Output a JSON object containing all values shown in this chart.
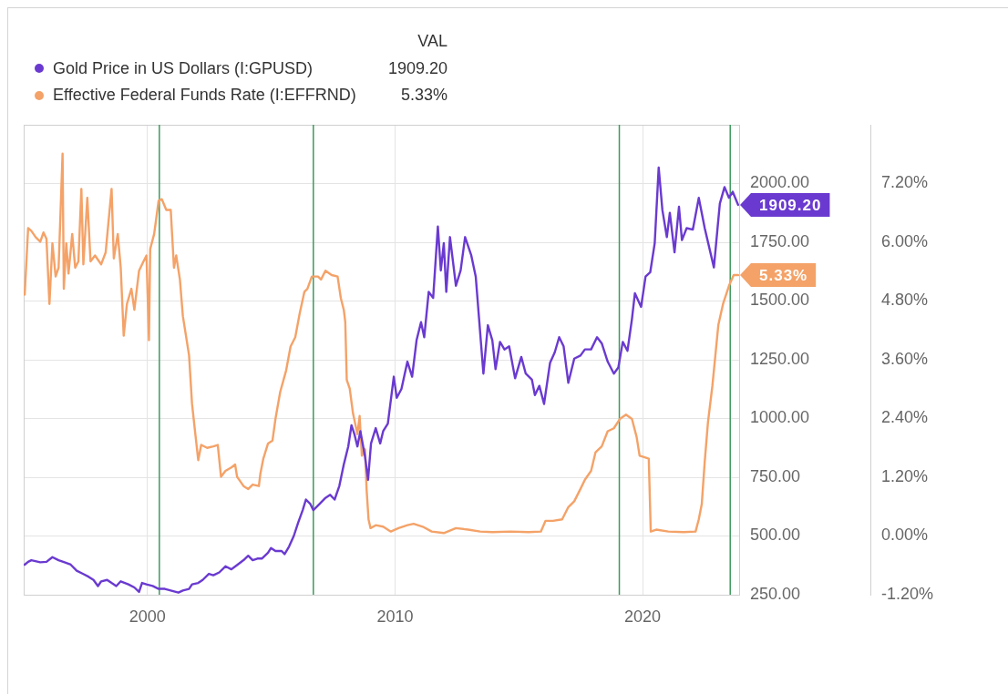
{
  "chart_data": {
    "type": "line",
    "xlim": [
      1995,
      2023.9
    ],
    "xticks": [
      2000,
      2010,
      2020
    ],
    "ylim": [
      250,
      2250
    ],
    "yticks": [
      {
        "value": 250,
        "label": "250.00"
      },
      {
        "value": 500,
        "label": "500.00"
      },
      {
        "value": 750,
        "label": "750.00"
      },
      {
        "value": 1000,
        "label": "1000.00"
      },
      {
        "value": 1250,
        "label": "1250.00"
      },
      {
        "value": 1500,
        "label": "1500.00"
      },
      {
        "value": 1750,
        "label": "1750.00"
      },
      {
        "value": 2000,
        "label": "2000.00"
      }
    ],
    "y2lim": [
      -1.2,
      8.4
    ],
    "y2ticks": [
      {
        "value": -1.2,
        "label": "-1.20%"
      },
      {
        "value": 0,
        "label": "0.00%"
      },
      {
        "value": 1.2,
        "label": "1.20%"
      },
      {
        "value": 2.4,
        "label": "2.40%"
      },
      {
        "value": 3.6,
        "label": "3.60%"
      },
      {
        "value": 4.8,
        "label": "4.80%"
      },
      {
        "value": 6,
        "label": "6.00%"
      },
      {
        "value": 7.2,
        "label": "7.20%"
      }
    ],
    "grid": true,
    "legend": "top left",
    "legend_title": "VAL",
    "ref_lines": [
      {
        "axis": "x",
        "value": 2000.48,
        "color": "#3d9a5c"
      },
      {
        "axis": "x",
        "value": 2006.7,
        "color": "#3d9a5c"
      },
      {
        "axis": "x",
        "value": 2019.06,
        "color": "#3d9a5c"
      },
      {
        "axis": "x",
        "value": 2023.54,
        "color": "#3d9a5c"
      }
    ],
    "series": [
      {
        "name": "Gold Price in US Dollars (I:GPUSD)",
        "color": "#6a3ad0",
        "x": [
          1995.04,
          1995.18,
          1995.31,
          1995.67,
          1995.92,
          1996.16,
          1996.41,
          1996.65,
          1996.9,
          1997.14,
          1997.39,
          1997.63,
          1997.82,
          1998.0,
          1998.13,
          1998.37,
          1998.55,
          1998.74,
          1998.92,
          1999.23,
          1999.47,
          1999.66,
          1999.78,
          1999.96,
          2000.21,
          2000.45,
          2000.7,
          2000.94,
          2001.25,
          2001.43,
          2001.68,
          2001.8,
          2002.05,
          2002.23,
          2002.48,
          2002.66,
          2002.9,
          2003.15,
          2003.39,
          2003.64,
          2003.88,
          2004.07,
          2004.25,
          2004.44,
          2004.62,
          2004.87,
          2004.99,
          2005.17,
          2005.42,
          2005.54,
          2005.72,
          2005.91,
          2006.09,
          2006.27,
          2006.4,
          2006.58,
          2006.7,
          2006.95,
          2007.19,
          2007.38,
          2007.56,
          2007.75,
          2007.93,
          2008.11,
          2008.24,
          2008.36,
          2008.48,
          2008.6,
          2008.79,
          2008.91,
          2009.03,
          2009.22,
          2009.4,
          2009.52,
          2009.71,
          2009.95,
          2010.07,
          2010.26,
          2010.5,
          2010.69,
          2010.87,
          2011.05,
          2011.18,
          2011.36,
          2011.54,
          2011.73,
          2011.85,
          2011.97,
          2012.07,
          2012.22,
          2012.46,
          2012.65,
          2012.83,
          2013.08,
          2013.26,
          2013.57,
          2013.75,
          2013.93,
          2014.06,
          2014.24,
          2014.42,
          2014.61,
          2014.85,
          2015.1,
          2015.28,
          2015.53,
          2015.65,
          2015.83,
          2016.02,
          2016.26,
          2016.45,
          2016.63,
          2016.81,
          2017.0,
          2017.24,
          2017.49,
          2017.67,
          2017.92,
          2018.16,
          2018.35,
          2018.59,
          2018.84,
          2019.02,
          2019.2,
          2019.39,
          2019.57,
          2019.69,
          2019.94,
          2020.12,
          2020.31,
          2020.49,
          2020.65,
          2020.8,
          2020.98,
          2021.1,
          2021.29,
          2021.47,
          2021.59,
          2021.78,
          2022.03,
          2022.27,
          2022.51,
          2022.88,
          2023.12,
          2023.31,
          2023.49,
          2023.64,
          2023.86
        ],
        "values": [
          378,
          390,
          397,
          388,
          390,
          410,
          397,
          388,
          378,
          352,
          339,
          326,
          313,
          287,
          307,
          313,
          300,
          287,
          307,
          294,
          281,
          262,
          300,
          294,
          287,
          275,
          275,
          268,
          259,
          268,
          275,
          294,
          300,
          313,
          339,
          333,
          345,
          371,
          358,
          378,
          397,
          416,
          397,
          404,
          404,
          429,
          449,
          436,
          436,
          423,
          455,
          500,
          558,
          610,
          655,
          636,
          610,
          636,
          662,
          675,
          655,
          713,
          804,
          881,
          971,
          933,
          881,
          946,
          836,
          739,
          894,
          959,
          894,
          946,
          978,
          1178,
          1088,
          1126,
          1242,
          1178,
          1333,
          1410,
          1346,
          1539,
          1513,
          1817,
          1630,
          1746,
          1539,
          1772,
          1565,
          1630,
          1772,
          1694,
          1604,
          1191,
          1397,
          1333,
          1210,
          1326,
          1294,
          1307,
          1171,
          1262,
          1191,
          1165,
          1100,
          1139,
          1062,
          1236,
          1281,
          1346,
          1307,
          1152,
          1255,
          1268,
          1294,
          1294,
          1346,
          1320,
          1242,
          1191,
          1217,
          1326,
          1288,
          1423,
          1533,
          1475,
          1604,
          1623,
          1746,
          2068,
          1887,
          1772,
          1875,
          1707,
          1901,
          1759,
          1810,
          1804,
          1939,
          1810,
          1643,
          1914,
          1985,
          1939,
          1965,
          1909.2
        ],
        "value_labels": [
          null,
          null,
          null,
          null,
          null,
          null,
          null,
          null,
          null,
          null,
          null,
          null,
          null,
          null,
          null,
          null,
          null,
          null,
          null,
          null,
          null,
          null,
          null,
          null,
          null,
          null,
          null,
          null,
          null,
          null,
          null,
          null,
          null,
          null,
          null,
          null,
          null,
          null,
          null,
          null,
          null,
          null,
          null,
          null,
          null,
          null,
          null,
          null,
          null,
          null,
          null,
          null,
          null,
          null,
          null,
          null,
          null,
          null,
          null,
          null,
          null,
          null,
          null,
          null,
          null,
          null,
          null,
          null,
          null,
          null,
          null,
          null,
          null,
          null,
          null,
          null,
          null,
          null,
          null,
          null,
          null,
          null,
          null,
          null,
          null,
          null,
          null,
          null,
          null,
          null,
          null,
          null,
          null,
          null,
          null,
          null,
          null,
          null,
          null,
          null,
          null,
          null,
          null,
          null,
          null,
          null,
          null,
          null,
          null,
          null,
          null,
          null,
          null,
          null,
          null,
          null,
          null,
          null,
          null,
          null,
          null,
          null,
          null,
          null,
          null,
          null,
          null,
          null,
          null,
          null,
          null,
          null,
          null,
          null,
          null,
          null,
          null,
          null,
          null,
          null,
          null,
          null,
          null,
          null,
          null,
          null,
          null,
          "1909.20"
        ]
      },
      {
        "name": "Effective Federal Funds Rate (I:EFFRND)",
        "color": "#f4a268",
        "axis": "y2",
        "x": [
          1995.04,
          1995.18,
          1995.31,
          1995.49,
          1995.67,
          1995.8,
          1995.92,
          1996.04,
          1996.16,
          1996.29,
          1996.41,
          1996.57,
          1996.62,
          1996.72,
          1996.81,
          1996.96,
          1997.08,
          1997.21,
          1997.33,
          1997.41,
          1997.57,
          1997.7,
          1997.88,
          1998.13,
          1998.31,
          1998.55,
          1998.64,
          1998.8,
          1998.92,
          1999.04,
          1999.17,
          1999.35,
          1999.47,
          1999.66,
          1999.84,
          1999.96,
          2000.06,
          2000.11,
          2000.27,
          2000.45,
          2000.58,
          2000.76,
          2000.94,
          2001.07,
          2001.16,
          2001.31,
          2001.43,
          2001.68,
          2001.8,
          2001.92,
          2002.05,
          2002.17,
          2002.41,
          2002.66,
          2002.84,
          2002.97,
          2003.15,
          2003.39,
          2003.54,
          2003.62,
          2003.7,
          2003.88,
          2004.07,
          2004.25,
          2004.5,
          2004.56,
          2004.68,
          2004.87,
          2005.05,
          2005.17,
          2005.36,
          2005.6,
          2005.78,
          2005.97,
          2006.15,
          2006.34,
          2006.46,
          2006.64,
          2006.89,
          2007.01,
          2007.19,
          2007.44,
          2007.68,
          2007.81,
          2007.93,
          2007.99,
          2008.05,
          2008.17,
          2008.3,
          2008.48,
          2008.57,
          2008.66,
          2008.79,
          2008.85,
          2008.93,
          2009.01,
          2009.22,
          2009.52,
          2009.83,
          2010.14,
          2010.5,
          2010.75,
          2011.12,
          2011.48,
          2011.97,
          2012.46,
          2012.95,
          2013.44,
          2013.93,
          2014.67,
          2015.4,
          2015.89,
          2016.08,
          2016.38,
          2016.75,
          2017.0,
          2017.24,
          2017.49,
          2017.67,
          2017.92,
          2018.1,
          2018.35,
          2018.59,
          2018.84,
          2019.08,
          2019.33,
          2019.57,
          2019.76,
          2019.88,
          2020.06,
          2020.25,
          2020.33,
          2020.55,
          2021.04,
          2021.65,
          2022.14,
          2022.27,
          2022.39,
          2022.51,
          2022.64,
          2022.82,
          2022.94,
          2023.06,
          2023.25,
          2023.49,
          2023.68,
          2023.86
        ],
        "values": [
          4.93,
          6.29,
          6.23,
          6.1,
          6.01,
          6.2,
          6.07,
          4.74,
          5.98,
          5.3,
          5.48,
          7.81,
          5.05,
          5.98,
          5.36,
          6.17,
          5.48,
          5.61,
          7.09,
          5.55,
          6.91,
          5.61,
          5.73,
          5.55,
          5.79,
          7.09,
          5.67,
          6.17,
          5.48,
          4.09,
          4.74,
          5.05,
          4.62,
          5.42,
          5.61,
          5.73,
          4.0,
          5.86,
          6.17,
          6.85,
          6.88,
          6.66,
          6.66,
          5.48,
          5.73,
          5.24,
          4.49,
          3.69,
          2.7,
          2.14,
          1.55,
          1.86,
          1.8,
          1.83,
          1.86,
          1.21,
          1.33,
          1.4,
          1.46,
          1.21,
          1.15,
          1.02,
          0.96,
          1.05,
          1.02,
          1.27,
          1.58,
          1.89,
          1.95,
          2.39,
          2.94,
          3.38,
          3.87,
          4.06,
          4.55,
          4.99,
          5.05,
          5.3,
          5.3,
          5.24,
          5.42,
          5.33,
          5.3,
          4.86,
          4.62,
          4.37,
          3.19,
          3.01,
          2.51,
          2.08,
          2.45,
          1.64,
          1.77,
          0.96,
          0.34,
          0.16,
          0.22,
          0.19,
          0.09,
          0.16,
          0.22,
          0.25,
          0.19,
          0.09,
          0.06,
          0.16,
          0.13,
          0.09,
          0.08,
          0.09,
          0.08,
          0.09,
          0.31,
          0.31,
          0.34,
          0.59,
          0.71,
          0.96,
          1.15,
          1.33,
          1.71,
          1.83,
          2.14,
          2.2,
          2.39,
          2.48,
          2.39,
          2.02,
          1.64,
          1.61,
          1.58,
          0.09,
          0.13,
          0.09,
          0.08,
          0.09,
          0.34,
          0.65,
          1.52,
          2.32,
          3.07,
          3.69,
          4.31,
          4.74,
          5.11,
          5.33,
          5.33
        ],
        "value_labels": [
          null,
          null,
          null,
          null,
          null,
          null,
          null,
          null,
          null,
          null,
          null,
          null,
          null,
          null,
          null,
          null,
          null,
          null,
          null,
          null,
          null,
          null,
          null,
          null,
          null,
          null,
          null,
          null,
          null,
          null,
          null,
          null,
          null,
          null,
          null,
          null,
          null,
          null,
          null,
          null,
          null,
          null,
          null,
          null,
          null,
          null,
          null,
          null,
          null,
          null,
          null,
          null,
          null,
          null,
          null,
          null,
          null,
          null,
          null,
          null,
          null,
          null,
          null,
          null,
          null,
          null,
          null,
          null,
          null,
          null,
          null,
          null,
          null,
          null,
          null,
          null,
          null,
          null,
          null,
          null,
          null,
          null,
          null,
          null,
          null,
          null,
          null,
          null,
          null,
          null,
          null,
          null,
          null,
          null,
          null,
          null,
          null,
          null,
          null,
          null,
          null,
          null,
          null,
          null,
          null,
          null,
          null,
          null,
          null,
          null,
          null,
          null,
          null,
          null,
          null,
          null,
          null,
          null,
          null,
          null,
          null,
          null,
          null,
          null,
          null,
          null,
          null,
          null,
          null,
          null,
          null,
          null,
          null,
          null,
          null,
          null,
          null,
          null,
          null,
          null,
          null,
          null,
          null,
          null,
          null,
          null,
          "5.33%"
        ]
      }
    ]
  }
}
